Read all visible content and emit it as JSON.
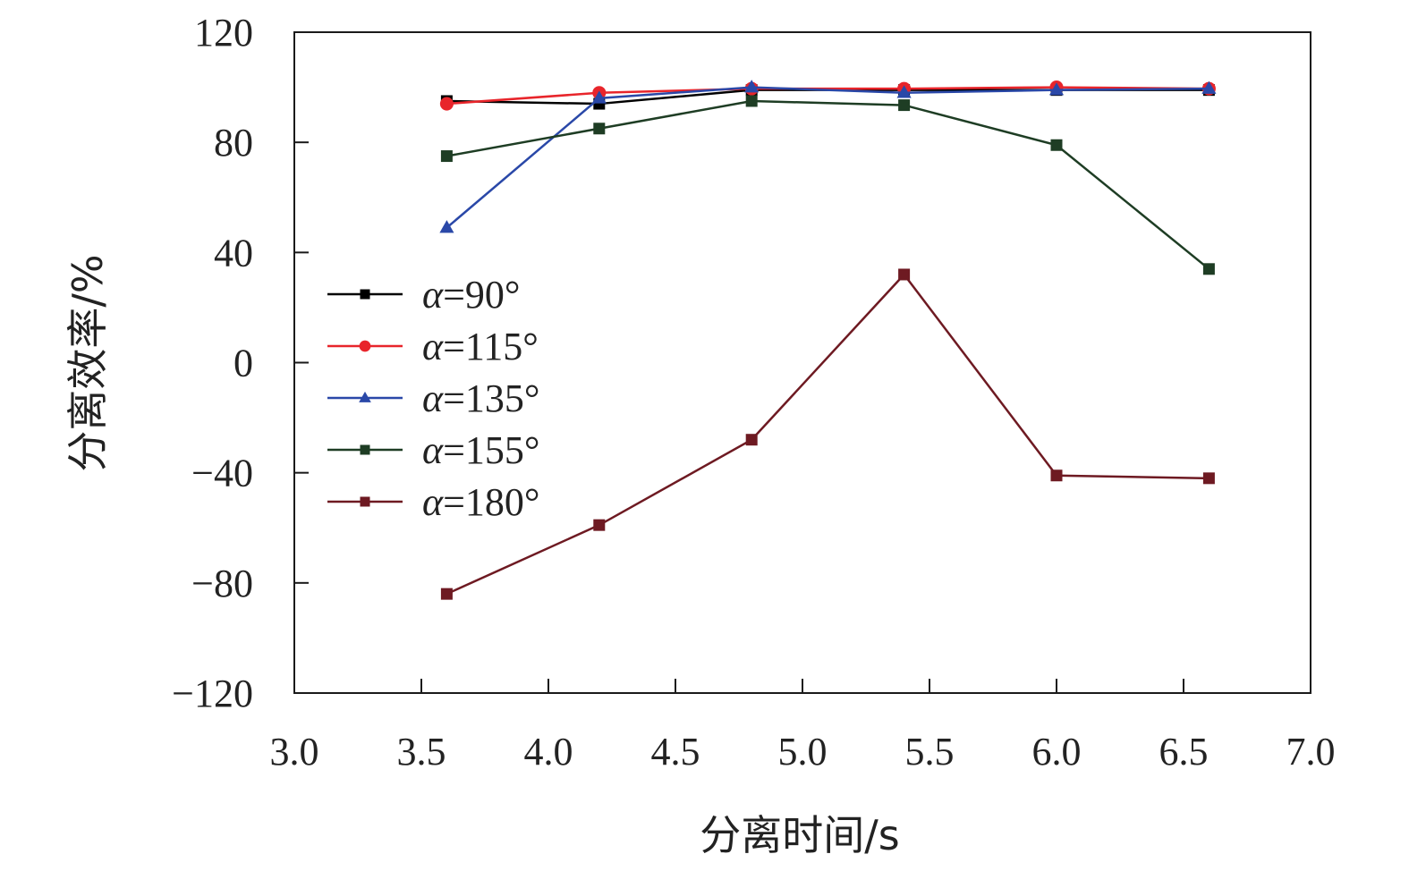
{
  "chart_data": {
    "type": "line",
    "title": "",
    "xlabel": "分离时间/s",
    "ylabel": "分离效率/%",
    "xlim": [
      3.0,
      7.0
    ],
    "ylim": [
      -120,
      120
    ],
    "xticks": [
      3.0,
      3.5,
      4.0,
      4.5,
      5.0,
      5.5,
      6.0,
      6.5,
      7.0
    ],
    "xtick_labels": [
      "3.0",
      "3.5",
      "4.0",
      "4.5",
      "5.0",
      "5.5",
      "6.0",
      "6.5",
      "7.0"
    ],
    "yticks": [
      -120,
      -80,
      -40,
      0,
      40,
      80,
      120
    ],
    "ytick_labels": [
      "−120",
      "−80",
      "−40",
      "0",
      "40",
      "80",
      "120"
    ],
    "grid": false,
    "legend_position": "left-middle",
    "x": [
      3.6,
      4.2,
      4.8,
      5.4,
      6.0,
      6.6
    ],
    "series": [
      {
        "name": "α=90°",
        "alpha": "α",
        "angle": "=90°",
        "color": "#000000",
        "marker": "square",
        "values": [
          95,
          94,
          99,
          99,
          99,
          99
        ]
      },
      {
        "name": "α=115°",
        "alpha": "α",
        "angle": "=115°",
        "color": "#e8252b",
        "marker": "circle",
        "values": [
          94,
          98,
          99.5,
          99.5,
          100,
          99.5
        ]
      },
      {
        "name": "α=135°",
        "alpha": "α",
        "angle": "=135°",
        "color": "#2a48a8",
        "marker": "triangle",
        "values": [
          49,
          96,
          100,
          98,
          99,
          99.5
        ]
      },
      {
        "name": "α=155°",
        "alpha": "α",
        "angle": "=155°",
        "color": "#1e3d24",
        "marker": "square",
        "values": [
          75,
          85,
          95,
          93.5,
          79,
          34
        ]
      },
      {
        "name": "α=180°",
        "alpha": "α",
        "angle": "=180°",
        "color": "#6e1a22",
        "marker": "square",
        "values": [
          -84,
          -59,
          -28,
          32,
          -41,
          -42
        ]
      }
    ]
  }
}
